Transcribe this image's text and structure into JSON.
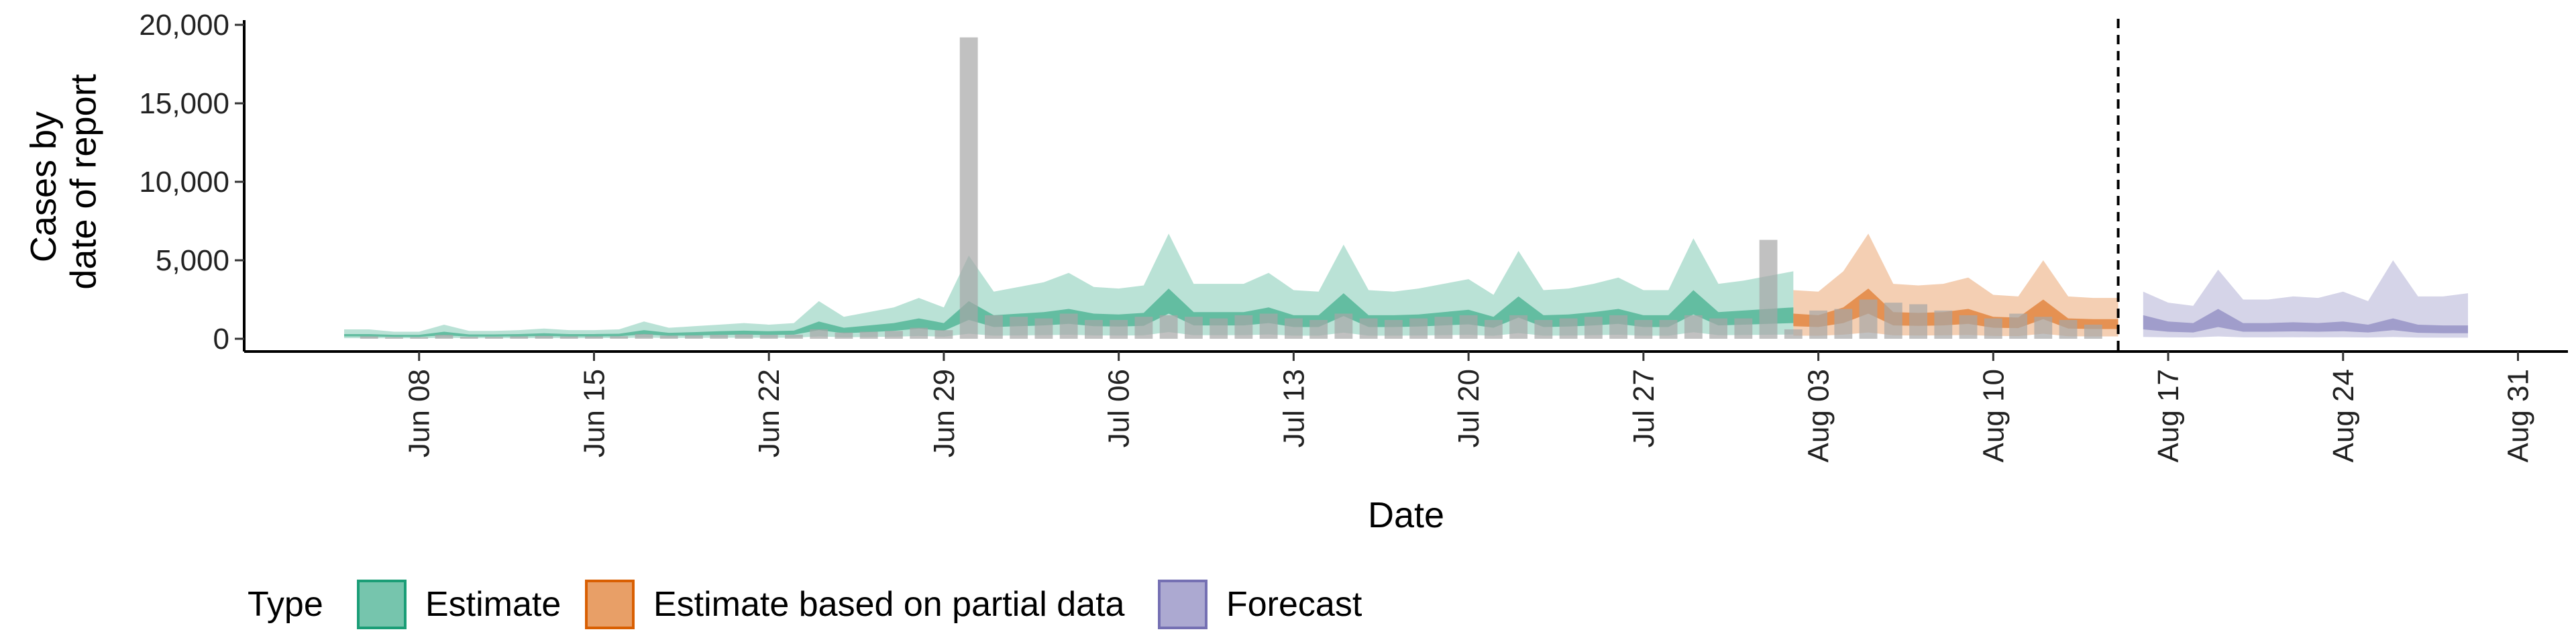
{
  "chart_data": {
    "type": "ribbon",
    "y_label_lines": [
      "Cases by",
      "date of report"
    ],
    "x_label": "Date",
    "legend_title": "Type",
    "xlim": [
      "Jun 01",
      "Sep 02"
    ],
    "xticks": [
      "Jun 08",
      "Jun 15",
      "Jun 22",
      "Jun 29",
      "Jul 06",
      "Jul 13",
      "Jul 20",
      "Jul 27",
      "Aug 03",
      "Aug 10",
      "Aug 17",
      "Aug 24",
      "Aug 31"
    ],
    "ylim": [
      0,
      20000
    ],
    "yticks": [
      0,
      {
        "value": 5000,
        "label": "5,000"
      },
      {
        "value": 10000,
        "label": "10,000"
      },
      {
        "value": 15000,
        "label": "15,000"
      },
      {
        "value": 20000,
        "label": "20,000"
      }
    ],
    "vline": "Aug 15",
    "bars": {
      "color": "#a6a6a6",
      "x": [
        "Jun 05",
        "Jun 06",
        "Jun 07",
        "Jun 08",
        "Jun 09",
        "Jun 10",
        "Jun 11",
        "Jun 12",
        "Jun 13",
        "Jun 14",
        "Jun 15",
        "Jun 16",
        "Jun 17",
        "Jun 18",
        "Jun 19",
        "Jun 20",
        "Jun 21",
        "Jun 22",
        "Jun 23",
        "Jun 24",
        "Jun 25",
        "Jun 26",
        "Jun 27",
        "Jun 28",
        "Jun 29",
        "Jun 30",
        "Jul 01",
        "Jul 02",
        "Jul 03",
        "Jul 04",
        "Jul 05",
        "Jul 06",
        "Jul 07",
        "Jul 08",
        "Jul 09",
        "Jul 10",
        "Jul 11",
        "Jul 12",
        "Jul 13",
        "Jul 14",
        "Jul 15",
        "Jul 16",
        "Jul 17",
        "Jul 18",
        "Jul 19",
        "Jul 20",
        "Jul 21",
        "Jul 22",
        "Jul 23",
        "Jul 24",
        "Jul 25",
        "Jul 26",
        "Jul 27",
        "Jul 28",
        "Jul 29",
        "Jul 30",
        "Jul 31",
        "Aug 01",
        "Aug 02",
        "Aug 03",
        "Aug 04",
        "Aug 05",
        "Aug 06",
        "Aug 07",
        "Aug 08",
        "Aug 09",
        "Aug 10",
        "Aug 11",
        "Aug 12",
        "Aug 13",
        "Aug 14"
      ],
      "values": [
        0,
        150,
        100,
        100,
        250,
        120,
        120,
        150,
        180,
        150,
        150,
        160,
        300,
        200,
        220,
        250,
        280,
        250,
        260,
        600,
        400,
        450,
        500,
        700,
        550,
        19200,
        1500,
        1400,
        1300,
        1600,
        1200,
        1200,
        1400,
        1500,
        1400,
        1300,
        1500,
        1600,
        1300,
        1200,
        1600,
        1300,
        1200,
        1300,
        1400,
        1500,
        1200,
        1500,
        1200,
        1300,
        1400,
        1500,
        1200,
        1200,
        1500,
        1300,
        1300,
        6300,
        600,
        1800,
        1900,
        2500,
        2300,
        2200,
        1800,
        1500,
        1300,
        1600,
        1400,
        1200,
        900
      ]
    },
    "series": [
      {
        "name": "Estimate",
        "color": "#1b9e77",
        "x": [
          "Jun 05",
          "Jun 06",
          "Jun 07",
          "Jun 08",
          "Jun 09",
          "Jun 10",
          "Jun 11",
          "Jun 12",
          "Jun 13",
          "Jun 14",
          "Jun 15",
          "Jun 16",
          "Jun 17",
          "Jun 18",
          "Jun 19",
          "Jun 20",
          "Jun 21",
          "Jun 22",
          "Jun 23",
          "Jun 24",
          "Jun 25",
          "Jun 26",
          "Jun 27",
          "Jun 28",
          "Jun 29",
          "Jun 30",
          "Jul 01",
          "Jul 02",
          "Jul 03",
          "Jul 04",
          "Jul 05",
          "Jul 06",
          "Jul 07",
          "Jul 08",
          "Jul 09",
          "Jul 10",
          "Jul 11",
          "Jul 12",
          "Jul 13",
          "Jul 14",
          "Jul 15",
          "Jul 16",
          "Jul 17",
          "Jul 18",
          "Jul 19",
          "Jul 20",
          "Jul 21",
          "Jul 22",
          "Jul 23",
          "Jul 24",
          "Jul 25",
          "Jul 26",
          "Jul 27",
          "Jul 28",
          "Jul 29",
          "Jul 30",
          "Jul 31",
          "Aug 01",
          "Aug 02"
        ],
        "upper90": [
          600,
          600,
          450,
          450,
          900,
          500,
          500,
          550,
          650,
          550,
          550,
          600,
          1100,
          700,
          800,
          900,
          1000,
          900,
          1000,
          2400,
          1400,
          1700,
          2000,
          2600,
          2000,
          5300,
          3000,
          3300,
          3600,
          4200,
          3300,
          3200,
          3400,
          6700,
          3500,
          3500,
          3500,
          4200,
          3100,
          3000,
          6000,
          3100,
          3000,
          3200,
          3500,
          3800,
          2800,
          5600,
          3100,
          3200,
          3500,
          3900,
          3100,
          3100,
          6400,
          3500,
          3700,
          4000,
          4300
        ],
        "upper50": [
          300,
          300,
          250,
          250,
          450,
          280,
          280,
          300,
          350,
          300,
          300,
          320,
          550,
          380,
          420,
          480,
          520,
          480,
          520,
          1100,
          700,
          850,
          1000,
          1300,
          1000,
          2400,
          1500,
          1600,
          1700,
          1900,
          1600,
          1550,
          1650,
          3200,
          1700,
          1700,
          1700,
          2000,
          1500,
          1500,
          2900,
          1500,
          1500,
          1550,
          1700,
          1850,
          1400,
          2700,
          1500,
          1550,
          1700,
          1900,
          1500,
          1500,
          3100,
          1700,
          1800,
          1900,
          2000
        ],
        "lower50": [
          150,
          150,
          120,
          120,
          220,
          140,
          140,
          150,
          170,
          150,
          150,
          160,
          270,
          190,
          210,
          240,
          260,
          240,
          260,
          550,
          350,
          420,
          500,
          650,
          500,
          1200,
          750,
          800,
          850,
          950,
          800,
          780,
          820,
          1600,
          850,
          850,
          850,
          1000,
          750,
          750,
          1450,
          750,
          750,
          780,
          850,
          920,
          700,
          1350,
          750,
          780,
          850,
          950,
          750,
          750,
          1550,
          850,
          900,
          950,
          1000
        ],
        "lower90": [
          40,
          40,
          30,
          30,
          60,
          35,
          35,
          40,
          45,
          40,
          40,
          45,
          75,
          50,
          55,
          65,
          70,
          65,
          70,
          150,
          95,
          115,
          135,
          175,
          135,
          320,
          200,
          215,
          230,
          255,
          215,
          210,
          220,
          430,
          230,
          230,
          230,
          270,
          200,
          200,
          390,
          200,
          200,
          210,
          230,
          250,
          190,
          360,
          200,
          210,
          230,
          255,
          200,
          200,
          415,
          230,
          240,
          255,
          270
        ]
      },
      {
        "name": "Estimate based on partial data",
        "color": "#d95f02",
        "x": [
          "Aug 02",
          "Aug 03",
          "Aug 04",
          "Aug 05",
          "Aug 06",
          "Aug 07",
          "Aug 08",
          "Aug 09",
          "Aug 10",
          "Aug 11",
          "Aug 12",
          "Aug 13",
          "Aug 14",
          "Aug 15"
        ],
        "upper90": [
          3100,
          3000,
          4300,
          6700,
          3500,
          3400,
          3500,
          3900,
          2800,
          2700,
          5000,
          2700,
          2600,
          2600
        ],
        "upper50": [
          1600,
          1500,
          2000,
          3200,
          1700,
          1650,
          1700,
          1900,
          1400,
          1350,
          2500,
          1300,
          1250,
          1250
        ],
        "lower50": [
          800,
          750,
          1000,
          1600,
          850,
          820,
          850,
          950,
          700,
          680,
          1250,
          650,
          620,
          620
        ],
        "lower90": [
          200,
          190,
          260,
          400,
          220,
          210,
          220,
          240,
          180,
          170,
          320,
          160,
          150,
          150
        ]
      },
      {
        "name": "Forecast",
        "color": "#7570b3",
        "x": [
          "Aug 16",
          "Aug 17",
          "Aug 18",
          "Aug 19",
          "Aug 20",
          "Aug 21",
          "Aug 22",
          "Aug 23",
          "Aug 24",
          "Aug 25",
          "Aug 26",
          "Aug 27",
          "Aug 28",
          "Aug 29"
        ],
        "upper90": [
          3000,
          2300,
          2100,
          4400,
          2500,
          2500,
          2700,
          2600,
          3000,
          2400,
          5000,
          2700,
          2700,
          2900
        ],
        "upper50": [
          1500,
          1100,
          1000,
          1900,
          1000,
          1000,
          1050,
          1000,
          1100,
          900,
          1300,
          900,
          850,
          850
        ],
        "lower50": [
          600,
          450,
          400,
          750,
          450,
          450,
          470,
          450,
          480,
          400,
          550,
          380,
          350,
          350
        ],
        "lower90": [
          120,
          90,
          80,
          150,
          90,
          90,
          95,
          90,
          95,
          80,
          110,
          75,
          70,
          70
        ]
      }
    ]
  }
}
